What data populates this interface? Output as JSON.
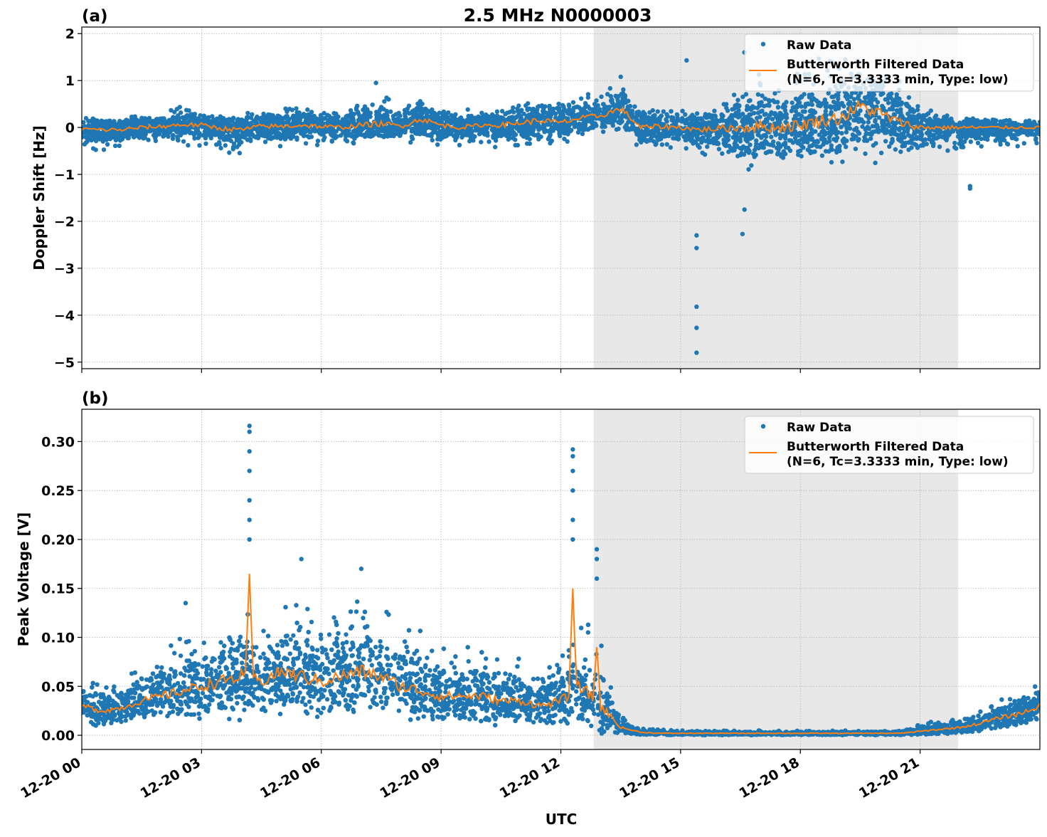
{
  "title": "2.5 MHz N0000003",
  "xlabel": "UTC",
  "x_tick_labels": [
    "12-20 00",
    "12-20 03",
    "12-20 06",
    "12-20 09",
    "12-20 12",
    "12-20 15",
    "12-20 18",
    "12-20 21"
  ],
  "colors": {
    "raw": "#1f77b4",
    "filtered": "#ff7f0e",
    "shade": "#e8e8e8",
    "grid": "#b0b0b0"
  },
  "chart_data": [
    {
      "type": "scatter",
      "panel_label": "(a)",
      "ylabel": "Doppler Shift [Hz]",
      "xunit": "hours UTC on 12-20",
      "xlim": [
        0,
        24
      ],
      "ylim": [
        -5.14,
        2.14
      ],
      "yticks": [
        2,
        1,
        0,
        -1,
        -2,
        -3,
        -4,
        -5
      ],
      "y_tick_labels": [
        "2",
        "1",
        "0",
        "−1",
        "−2",
        "−3",
        "−4",
        "−5"
      ],
      "grid": true,
      "shaded_span": [
        12.82,
        21.95
      ],
      "legend": {
        "placement": "top-right",
        "raw": "Raw Data",
        "filtered_line1": "Butterworth Filtered Data",
        "filtered_line2": "(N=6, Tc=3.3333 min, Type: low)"
      },
      "hours": [
        0,
        0.5,
        1,
        1.5,
        2,
        2.5,
        3,
        3.5,
        4,
        4.5,
        5,
        5.5,
        6,
        6.5,
        7,
        7.5,
        8,
        8.5,
        9,
        9.5,
        10,
        10.5,
        11,
        11.5,
        12,
        12.5,
        13,
        13.5,
        14,
        14.5,
        15,
        15.5,
        16,
        16.5,
        17,
        17.5,
        18,
        18.5,
        19,
        19.5,
        20,
        20.5,
        21,
        21.5,
        22,
        22.5,
        23,
        23.5,
        24
      ],
      "filtered": [
        -0.03,
        -0.05,
        -0.05,
        0.0,
        0.02,
        0.06,
        0.05,
        -0.02,
        -0.05,
        0.03,
        0.02,
        0.05,
        0.02,
        0.0,
        0.05,
        0.08,
        0.03,
        0.18,
        0.05,
        0.0,
        0.05,
        0.05,
        0.1,
        0.15,
        0.1,
        0.2,
        0.25,
        0.4,
        0.0,
        0.02,
        0.0,
        -0.05,
        -0.02,
        0.0,
        0.02,
        0.0,
        0.05,
        0.15,
        0.2,
        0.45,
        0.3,
        0.1,
        0.0,
        0.0,
        0.0,
        0.0,
        0.0,
        0.0,
        0.0
      ],
      "raw_lower": [
        -0.45,
        -0.5,
        -0.45,
        -0.4,
        -0.4,
        -0.4,
        -0.4,
        -0.55,
        -0.55,
        -0.4,
        -0.45,
        -0.4,
        -0.4,
        -0.4,
        -0.4,
        -0.35,
        -0.35,
        -0.35,
        -0.45,
        -0.4,
        -0.35,
        -0.45,
        -0.5,
        -0.5,
        -0.35,
        -0.2,
        -0.1,
        -0.2,
        -0.5,
        -0.5,
        -0.5,
        -0.6,
        -0.6,
        -0.9,
        -0.9,
        -0.8,
        -0.8,
        -0.8,
        -0.85,
        -0.8,
        -0.8,
        -0.6,
        -0.5,
        -0.5,
        -0.5,
        -0.45,
        -0.4,
        -0.4,
        -0.4
      ],
      "raw_upper": [
        0.25,
        0.2,
        0.2,
        0.3,
        0.35,
        0.45,
        0.4,
        0.3,
        0.3,
        0.4,
        0.4,
        0.45,
        0.4,
        0.35,
        0.5,
        0.7,
        0.5,
        0.6,
        0.4,
        0.4,
        0.35,
        0.4,
        0.5,
        0.6,
        0.6,
        0.7,
        0.8,
        0.9,
        0.5,
        0.4,
        0.4,
        0.4,
        0.5,
        1.0,
        1.2,
        1.0,
        1.4,
        1.5,
        1.6,
        1.6,
        1.4,
        1.0,
        0.5,
        0.3,
        0.2,
        0.15,
        0.15,
        0.1,
        0.1
      ],
      "outliers": [
        [
          15.4,
          -2.3
        ],
        [
          15.4,
          -2.57
        ],
        [
          15.4,
          -3.82
        ],
        [
          15.4,
          -4.27
        ],
        [
          15.4,
          -4.8
        ],
        [
          16.55,
          -2.27
        ],
        [
          16.6,
          -1.75
        ],
        [
          15.15,
          1.43
        ],
        [
          22.25,
          -1.25
        ],
        [
          22.25,
          -1.3
        ],
        [
          7.37,
          0.95
        ],
        [
          13.5,
          1.08
        ],
        [
          16.6,
          1.6
        ]
      ]
    },
    {
      "type": "scatter",
      "panel_label": "(b)",
      "ylabel": "Peak Voltage [V]",
      "xunit": "hours UTC on 12-20",
      "xlim": [
        0,
        24
      ],
      "ylim": [
        -0.0145,
        0.333
      ],
      "yticks": [
        0,
        0.05,
        0.1,
        0.15,
        0.2,
        0.25,
        0.3
      ],
      "y_tick_labels": [
        "0.00",
        "0.05",
        "0.10",
        "0.15",
        "0.20",
        "0.25",
        "0.30"
      ],
      "grid": true,
      "shaded_span": [
        12.82,
        21.95
      ],
      "legend": {
        "placement": "top-right",
        "raw": "Raw Data",
        "filtered_line1": "Butterworth Filtered Data",
        "filtered_line2": "(N=6, Tc=3.3333 min, Type: low)"
      },
      "hours": [
        0,
        0.5,
        1,
        1.5,
        2,
        2.5,
        3,
        3.5,
        4,
        4.5,
        5,
        5.5,
        6,
        6.5,
        7,
        7.5,
        8,
        8.5,
        9,
        9.5,
        10,
        10.5,
        11,
        11.5,
        12,
        12.5,
        13,
        13.5,
        14,
        14.5,
        15,
        15.5,
        16,
        16.5,
        17,
        17.5,
        18,
        18.5,
        19,
        19.5,
        20,
        20.5,
        21,
        21.5,
        22,
        22.5,
        23,
        23.5,
        24
      ],
      "filtered": [
        0.03,
        0.025,
        0.028,
        0.035,
        0.04,
        0.045,
        0.05,
        0.055,
        0.06,
        0.055,
        0.065,
        0.06,
        0.055,
        0.06,
        0.065,
        0.06,
        0.05,
        0.045,
        0.04,
        0.04,
        0.04,
        0.035,
        0.035,
        0.03,
        0.035,
        0.05,
        0.03,
        0.008,
        0.003,
        0.002,
        0.002,
        0.002,
        0.002,
        0.002,
        0.002,
        0.002,
        0.002,
        0.002,
        0.002,
        0.002,
        0.002,
        0.002,
        0.004,
        0.006,
        0.008,
        0.012,
        0.018,
        0.022,
        0.03
      ],
      "filtered_spikes": [
        [
          4.2,
          0.165
        ],
        [
          12.3,
          0.15
        ],
        [
          12.9,
          0.09
        ]
      ],
      "raw_lower": [
        0.008,
        0.01,
        0.01,
        0.012,
        0.012,
        0.014,
        0.015,
        0.015,
        0.015,
        0.015,
        0.015,
        0.015,
        0.015,
        0.015,
        0.015,
        0.015,
        0.015,
        0.012,
        0.012,
        0.01,
        0.01,
        0.01,
        0.01,
        0.01,
        0.012,
        0.012,
        0.01,
        0.002,
        0.0,
        0.0,
        0.0,
        0.0,
        0.0,
        0.0,
        0.0,
        0.0,
        0.0,
        0.0,
        0.0,
        0.0,
        0.0,
        0.0,
        0.0,
        0.001,
        0.002,
        0.004,
        0.006,
        0.008,
        0.01
      ],
      "raw_upper": [
        0.06,
        0.055,
        0.06,
        0.07,
        0.09,
        0.1,
        0.11,
        0.12,
        0.13,
        0.12,
        0.13,
        0.14,
        0.13,
        0.13,
        0.14,
        0.13,
        0.12,
        0.11,
        0.1,
        0.09,
        0.09,
        0.08,
        0.08,
        0.07,
        0.09,
        0.12,
        0.11,
        0.02,
        0.008,
        0.006,
        0.005,
        0.005,
        0.005,
        0.005,
        0.005,
        0.005,
        0.005,
        0.005,
        0.005,
        0.005,
        0.005,
        0.005,
        0.012,
        0.016,
        0.02,
        0.03,
        0.04,
        0.05,
        0.06
      ],
      "outliers": [
        [
          4.2,
          0.316
        ],
        [
          4.2,
          0.31
        ],
        [
          4.2,
          0.29
        ],
        [
          4.2,
          0.27
        ],
        [
          4.2,
          0.24
        ],
        [
          4.2,
          0.22
        ],
        [
          4.2,
          0.2
        ],
        [
          12.3,
          0.292
        ],
        [
          12.3,
          0.285
        ],
        [
          12.3,
          0.27
        ],
        [
          12.3,
          0.25
        ],
        [
          12.3,
          0.22
        ],
        [
          12.3,
          0.2
        ],
        [
          12.9,
          0.19
        ],
        [
          12.9,
          0.18
        ],
        [
          12.9,
          0.16
        ],
        [
          5.5,
          0.18
        ],
        [
          2.6,
          0.135
        ],
        [
          7.0,
          0.17
        ]
      ]
    }
  ]
}
